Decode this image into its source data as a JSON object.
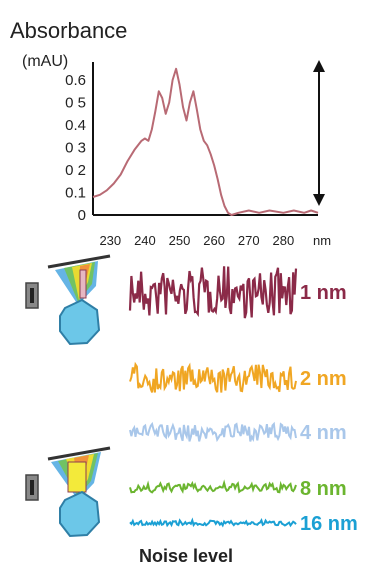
{
  "chart_data": [
    {
      "type": "line",
      "ylabel": "Absorbance",
      "yunit": "(mAU)",
      "xunit": "nm",
      "xlim": [
        225,
        290
      ],
      "ylim": [
        0,
        0.68
      ],
      "x_ticks": [
        "230",
        "240",
        "250",
        "260",
        "270",
        "280"
      ],
      "y_ticks": [
        "0",
        "0.1",
        "0 2",
        "0 3",
        "0.4",
        "0 5",
        "0.6"
      ],
      "x": [
        225,
        227,
        229,
        231,
        233,
        235,
        237,
        239,
        240,
        241,
        242,
        243,
        244,
        245,
        246,
        247,
        248,
        249,
        250,
        251,
        252,
        253,
        254,
        255,
        256,
        257,
        258,
        259,
        260,
        261,
        262,
        263,
        264,
        265,
        267,
        270,
        273,
        276,
        280,
        283,
        286,
        288,
        290
      ],
      "y": [
        0.08,
        0.09,
        0.11,
        0.14,
        0.18,
        0.24,
        0.29,
        0.33,
        0.34,
        0.33,
        0.38,
        0.46,
        0.55,
        0.52,
        0.45,
        0.5,
        0.6,
        0.65,
        0.58,
        0.48,
        0.42,
        0.5,
        0.55,
        0.47,
        0.38,
        0.33,
        0.31,
        0.27,
        0.22,
        0.16,
        0.09,
        0.04,
        0.01,
        0.0,
        0.01,
        0.02,
        0.01,
        0.02,
        0.01,
        0.02,
        0.01,
        0.02,
        0.01
      ],
      "series_color": "#b86a74"
    },
    {
      "type": "line",
      "xlabel": "Noise level",
      "series": [
        {
          "name": "1 nm",
          "amplitude": 1.0,
          "color": "#8b2a48"
        },
        {
          "name": "2 nm",
          "amplitude": 0.55,
          "color": "#f0a623"
        },
        {
          "name": "4 nm",
          "amplitude": 0.35,
          "color": "#a9c7ea"
        },
        {
          "name": "8 nm",
          "amplitude": 0.18,
          "color": "#6bb52f"
        },
        {
          "name": "16 nm",
          "amplitude": 0.1,
          "color": "#1ba0d4"
        }
      ]
    }
  ]
}
